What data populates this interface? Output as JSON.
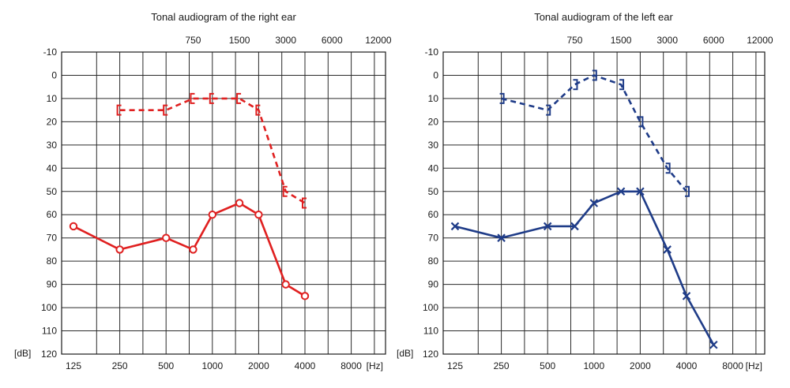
{
  "chart_data": [
    {
      "type": "line",
      "title": "Tonal audiogram of the right ear",
      "xlabel": "[Hz]",
      "ylabel": "[dB]",
      "x_bottom_ticks": [
        "125",
        "250",
        "500",
        "1000",
        "2000",
        "4000",
        "8000"
      ],
      "x_top_ticks": [
        "750",
        "1500",
        "3000",
        "6000",
        "12000"
      ],
      "y_ticks": [
        "-10",
        "0",
        "10",
        "20",
        "30",
        "40",
        "50",
        "60",
        "70",
        "80",
        "90",
        "100",
        "110",
        "120"
      ],
      "ylim": [
        -10,
        120
      ],
      "y_inverted": true,
      "x_scale": "log2",
      "grid": true,
      "color": "#e02020",
      "series": [
        {
          "line": "dashed",
          "marker": "bracket-left",
          "x": [
            250,
            500,
            750,
            1000,
            1500,
            2000,
            3000,
            4000
          ],
          "y": [
            15,
            15,
            10,
            10,
            10,
            15,
            50,
            55
          ]
        },
        {
          "line": "solid",
          "marker": "circle",
          "x": [
            125,
            250,
            500,
            750,
            1000,
            1500,
            2000,
            3000,
            4000
          ],
          "y": [
            65,
            75,
            70,
            75,
            60,
            55,
            60,
            90,
            95
          ]
        }
      ]
    },
    {
      "type": "line",
      "title": "Tonal audiogram of the left ear",
      "xlabel": "[Hz]",
      "ylabel": "[dB]",
      "x_bottom_ticks": [
        "125",
        "250",
        "500",
        "1000",
        "2000",
        "4000",
        "8000"
      ],
      "x_top_ticks": [
        "750",
        "1500",
        "3000",
        "6000",
        "12000"
      ],
      "y_ticks": [
        "-10",
        "0",
        "10",
        "20",
        "30",
        "40",
        "50",
        "60",
        "70",
        "80",
        "90",
        "100",
        "110",
        "120"
      ],
      "ylim": [
        -10,
        120
      ],
      "y_inverted": true,
      "x_scale": "log2",
      "grid": true,
      "color": "#1f3c88",
      "series": [
        {
          "line": "dashed",
          "marker": "bracket-right",
          "x": [
            250,
            500,
            750,
            1000,
            1500,
            2000,
            3000,
            4000
          ],
          "y": [
            10,
            15,
            4,
            0,
            4,
            20,
            40,
            50
          ]
        },
        {
          "line": "solid",
          "marker": "cross",
          "x": [
            125,
            250,
            500,
            750,
            1000,
            1500,
            2000,
            3000,
            4000,
            6000
          ],
          "y": [
            65,
            70,
            65,
            65,
            55,
            50,
            50,
            75,
            95,
            116
          ]
        }
      ]
    }
  ]
}
